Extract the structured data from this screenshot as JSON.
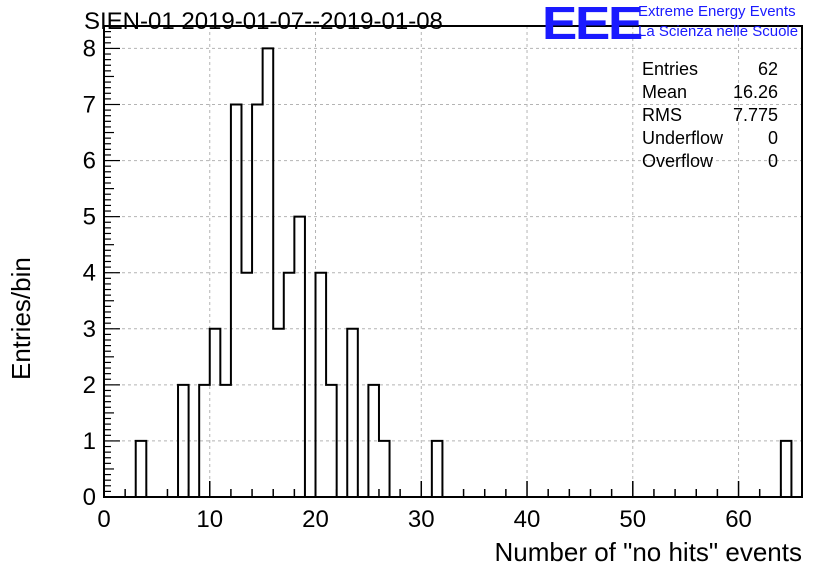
{
  "title": "SIEN-01 2019-01-07--2019-01-08",
  "logo": {
    "mark": "EEE",
    "line1": "Extreme Energy Events",
    "line2": "La Scienza nelle Scuole",
    "color": "#1a1aff"
  },
  "stats": {
    "entries_label": "Entries",
    "entries_value": "62",
    "mean_label": "Mean",
    "mean_value": "16.26",
    "rms_label": "RMS",
    "rms_value": "7.775",
    "underflow_label": "Underflow",
    "underflow_value": "0",
    "overflow_label": "Overflow",
    "overflow_value": "0"
  },
  "chart_data": {
    "type": "bar",
    "title": "SIEN-01 2019-01-07--2019-01-08",
    "xlabel": "Number of \"no hits\" events",
    "ylabel": "Entries/bin",
    "xlim": [
      0,
      66
    ],
    "ylim": [
      0,
      8.4
    ],
    "bin_width": 1,
    "xticks": [
      0,
      10,
      20,
      30,
      40,
      50,
      60
    ],
    "yticks": [
      0,
      1,
      2,
      3,
      4,
      5,
      6,
      7,
      8
    ],
    "grid": true,
    "bins": [
      {
        "x": 3,
        "y": 1
      },
      {
        "x": 7,
        "y": 2
      },
      {
        "x": 9,
        "y": 2
      },
      {
        "x": 10,
        "y": 3
      },
      {
        "x": 11,
        "y": 2
      },
      {
        "x": 12,
        "y": 7
      },
      {
        "x": 13,
        "y": 4
      },
      {
        "x": 14,
        "y": 7
      },
      {
        "x": 15,
        "y": 8
      },
      {
        "x": 16,
        "y": 3
      },
      {
        "x": 17,
        "y": 4
      },
      {
        "x": 18,
        "y": 5
      },
      {
        "x": 20,
        "y": 4
      },
      {
        "x": 21,
        "y": 2
      },
      {
        "x": 23,
        "y": 3
      },
      {
        "x": 25,
        "y": 2
      },
      {
        "x": 26,
        "y": 1
      },
      {
        "x": 31,
        "y": 1
      },
      {
        "x": 64,
        "y": 1
      }
    ]
  }
}
